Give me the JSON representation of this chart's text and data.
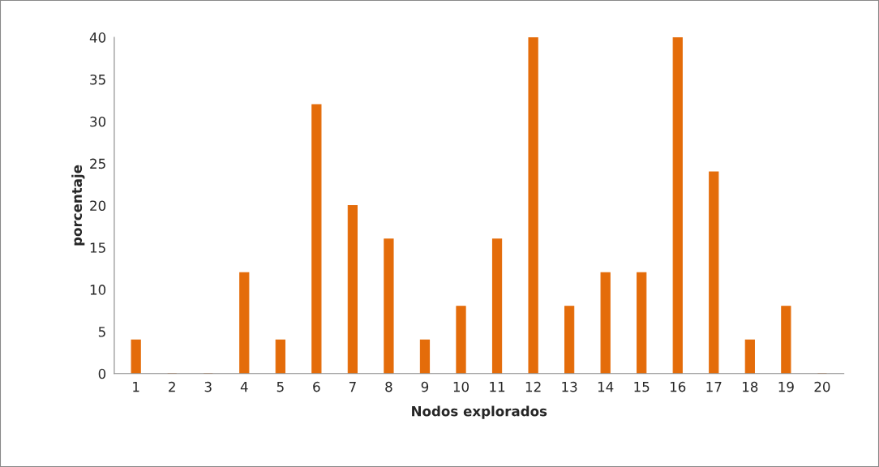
{
  "chart_data": {
    "type": "bar",
    "xlabel": "Nodos explorados",
    "ylabel": "porcentaje",
    "categories": [
      "1",
      "2",
      "3",
      "4",
      "5",
      "6",
      "7",
      "8",
      "9",
      "10",
      "11",
      "12",
      "13",
      "14",
      "15",
      "16",
      "17",
      "18",
      "19",
      "20"
    ],
    "values": [
      4,
      0,
      0,
      12,
      4,
      32,
      20,
      16,
      4,
      8,
      16,
      40,
      8,
      12,
      12,
      40,
      24,
      4,
      8,
      0
    ],
    "color": "#e46c0a",
    "ylim": [
      0,
      40
    ],
    "yticks": [
      0,
      5,
      10,
      15,
      20,
      25,
      30,
      35,
      40
    ],
    "grid": false,
    "legend": false
  }
}
